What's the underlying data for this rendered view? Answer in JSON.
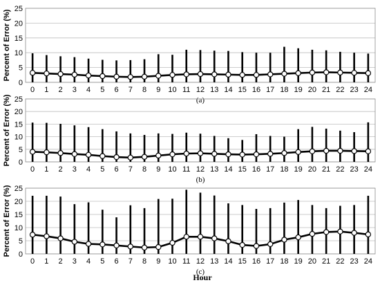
{
  "figure": {
    "xlabel": "Hour"
  },
  "chart_data": [
    {
      "type": "line",
      "caption": "(a)",
      "ylabel": "Percent of Error (%)",
      "ylim": [
        0,
        25
      ],
      "yticks": [
        0,
        5,
        10,
        15,
        20,
        25
      ],
      "x": [
        0,
        1,
        2,
        3,
        4,
        5,
        6,
        7,
        8,
        9,
        10,
        11,
        12,
        13,
        14,
        15,
        16,
        17,
        18,
        19,
        20,
        21,
        22,
        23,
        24
      ],
      "mean": [
        3.2,
        3.0,
        2.8,
        2.6,
        2.3,
        2.1,
        1.9,
        1.8,
        1.9,
        2.2,
        2.5,
        2.7,
        2.8,
        2.7,
        2.6,
        2.5,
        2.5,
        2.7,
        2.9,
        3.1,
        3.3,
        3.4,
        3.3,
        3.2,
        3.1
      ],
      "upper": [
        9.8,
        9.2,
        8.8,
        8.5,
        8.0,
        7.6,
        7.4,
        7.5,
        7.8,
        9.5,
        9.3,
        11.0,
        10.9,
        10.7,
        10.6,
        10.2,
        10.0,
        10.0,
        12.0,
        11.5,
        11.0,
        10.8,
        10.3,
        10.0,
        9.7
      ],
      "lower": [
        0,
        0,
        0,
        0,
        0,
        0,
        0,
        0,
        0,
        0,
        0,
        0,
        0,
        0,
        0,
        0,
        0,
        0,
        0,
        0,
        0,
        0,
        0,
        0,
        0
      ],
      "grid": true
    },
    {
      "type": "line",
      "caption": "(b)",
      "ylabel": "Percent of Error (%)",
      "ylim": [
        0,
        25
      ],
      "yticks": [
        0,
        5,
        10,
        15,
        20,
        25
      ],
      "x": [
        0,
        1,
        2,
        3,
        4,
        5,
        6,
        7,
        8,
        9,
        10,
        11,
        12,
        13,
        14,
        15,
        16,
        17,
        18,
        19,
        20,
        21,
        22,
        23,
        24
      ],
      "mean": [
        4.0,
        3.8,
        3.5,
        3.1,
        2.8,
        2.3,
        1.9,
        1.7,
        2.0,
        2.5,
        3.0,
        3.3,
        3.4,
        3.2,
        3.0,
        2.9,
        3.0,
        3.2,
        3.5,
        3.9,
        4.2,
        4.4,
        4.4,
        4.3,
        4.2
      ],
      "upper": [
        15.6,
        15.5,
        15.1,
        14.5,
        13.8,
        13.0,
        12.1,
        11.3,
        10.7,
        11.3,
        11.1,
        11.6,
        11.2,
        10.3,
        9.4,
        8.7,
        11.0,
        10.3,
        10.0,
        13.0,
        13.9,
        13.2,
        12.4,
        11.8,
        15.7
      ],
      "lower": [
        0,
        0,
        0,
        0,
        0,
        0,
        0,
        0,
        0,
        0,
        0,
        0,
        0,
        0,
        0,
        0,
        0,
        0,
        0,
        0,
        0,
        0,
        0,
        0,
        0
      ],
      "grid": true
    },
    {
      "type": "line",
      "caption": "(c)",
      "ylabel": "Percent of Error (%)",
      "ylim": [
        0,
        25
      ],
      "yticks": [
        0,
        5,
        10,
        15,
        20,
        25
      ],
      "x": [
        0,
        1,
        2,
        3,
        4,
        5,
        6,
        7,
        8,
        9,
        10,
        11,
        12,
        13,
        14,
        15,
        16,
        17,
        18,
        19,
        20,
        21,
        22,
        23,
        24
      ],
      "mean": [
        7.3,
        6.7,
        5.9,
        4.6,
        3.8,
        3.6,
        3.2,
        2.8,
        2.4,
        2.6,
        4.2,
        6.5,
        6.5,
        5.9,
        4.8,
        3.4,
        3.0,
        3.7,
        5.4,
        6.3,
        7.6,
        8.3,
        8.5,
        8.0,
        7.4
      ],
      "upper": [
        22.1,
        22.1,
        21.8,
        18.9,
        19.6,
        16.8,
        13.9,
        18.5,
        17.4,
        20.9,
        21.0,
        24.4,
        23.3,
        22.2,
        19.2,
        18.6,
        17.1,
        17.4,
        19.5,
        20.5,
        18.6,
        17.4,
        18.3,
        18.6,
        22.1
      ],
      "lower": [
        0,
        0,
        0,
        0,
        0,
        0,
        0,
        0,
        0,
        0,
        0,
        0,
        0,
        0,
        0,
        0,
        0,
        0,
        0,
        0,
        0,
        0,
        0,
        0,
        0
      ],
      "grid": true
    }
  ]
}
